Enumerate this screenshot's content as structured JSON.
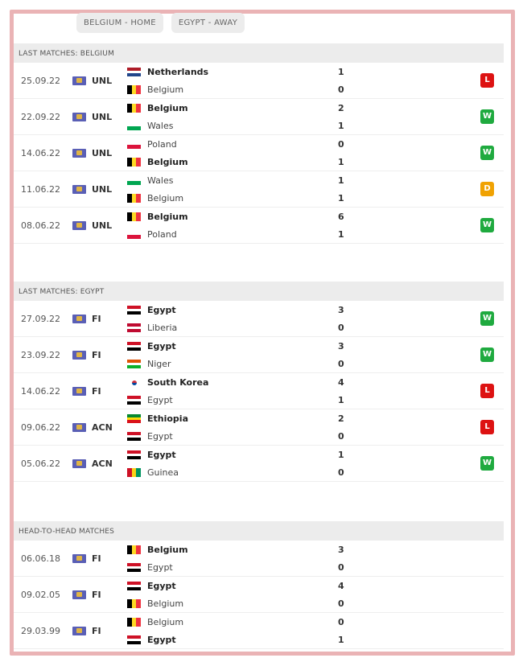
{
  "tabs": [
    "BELGIUM - HOME",
    "EGYPT - AWAY"
  ],
  "colors": {
    "W": "#1faa3f",
    "L": "#dd1212",
    "D": "#f0a202"
  },
  "sections": [
    {
      "title": "LAST MATCHES: BELGIUM",
      "matches": [
        {
          "date": "25.09.22",
          "comp": "UNL",
          "home": "Netherlands",
          "away": "Belgium",
          "hs": "1",
          "as": "0",
          "win": "home",
          "result": "L"
        },
        {
          "date": "22.09.22",
          "comp": "UNL",
          "home": "Belgium",
          "away": "Wales",
          "hs": "2",
          "as": "1",
          "win": "home",
          "result": "W"
        },
        {
          "date": "14.06.22",
          "comp": "UNL",
          "home": "Poland",
          "away": "Belgium",
          "hs": "0",
          "as": "1",
          "win": "away",
          "result": "W"
        },
        {
          "date": "11.06.22",
          "comp": "UNL",
          "home": "Wales",
          "away": "Belgium",
          "hs": "1",
          "as": "1",
          "win": "none",
          "result": "D"
        },
        {
          "date": "08.06.22",
          "comp": "UNL",
          "home": "Belgium",
          "away": "Poland",
          "hs": "6",
          "as": "1",
          "win": "home",
          "result": "W"
        }
      ]
    },
    {
      "title": "LAST MATCHES: EGYPT",
      "matches": [
        {
          "date": "27.09.22",
          "comp": "FI",
          "home": "Egypt",
          "away": "Liberia",
          "hs": "3",
          "as": "0",
          "win": "home",
          "result": "W"
        },
        {
          "date": "23.09.22",
          "comp": "FI",
          "home": "Egypt",
          "away": "Niger",
          "hs": "3",
          "as": "0",
          "win": "home",
          "result": "W"
        },
        {
          "date": "14.06.22",
          "comp": "FI",
          "home": "South Korea",
          "away": "Egypt",
          "hs": "4",
          "as": "1",
          "win": "home",
          "result": "L"
        },
        {
          "date": "09.06.22",
          "comp": "ACN",
          "home": "Ethiopia",
          "away": "Egypt",
          "hs": "2",
          "as": "0",
          "win": "home",
          "result": "L"
        },
        {
          "date": "05.06.22",
          "comp": "ACN",
          "home": "Egypt",
          "away": "Guinea",
          "hs": "1",
          "as": "0",
          "win": "home",
          "result": "W"
        }
      ]
    },
    {
      "title": "HEAD-TO-HEAD MATCHES",
      "matches": [
        {
          "date": "06.06.18",
          "comp": "FI",
          "home": "Belgium",
          "away": "Egypt",
          "hs": "3",
          "as": "0",
          "win": "home",
          "result": ""
        },
        {
          "date": "09.02.05",
          "comp": "FI",
          "home": "Egypt",
          "away": "Belgium",
          "hs": "4",
          "as": "0",
          "win": "home",
          "result": ""
        },
        {
          "date": "29.03.99",
          "comp": "FI",
          "home": "Belgium",
          "away": "Egypt",
          "hs": "0",
          "as": "1",
          "win": "away",
          "result": ""
        }
      ]
    }
  ]
}
